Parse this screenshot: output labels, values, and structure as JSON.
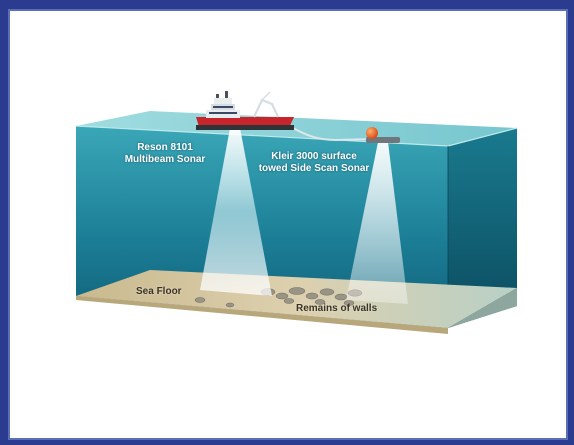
{
  "labels": {
    "multibeam_line1": "Reson 8101",
    "multibeam_line2": "Multibeam Sonar",
    "sidescan_line1": "Kleir 3000 surface",
    "sidescan_line2": "towed Side Scan Sonar",
    "sea_floor": "Sea Floor",
    "remains": "Remains of walls"
  },
  "colors": {
    "background": "#2b3b8f",
    "water_front": "#1f8aa0",
    "water_side": "#0f5b70",
    "seabed": "#d8c9a3",
    "ship_hull": "#c8242c",
    "buoy": "#e8641c"
  }
}
